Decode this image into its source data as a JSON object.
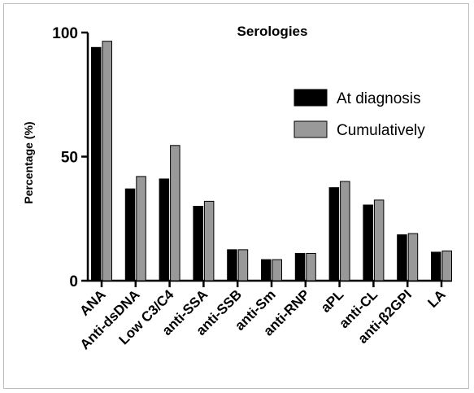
{
  "chart_data": {
    "type": "bar",
    "title": "Serologies",
    "xlabel": "",
    "ylabel": "Percentage (%)",
    "ylim": [
      0,
      100
    ],
    "yticks": [
      0,
      50,
      100
    ],
    "categories": [
      "ANA",
      "Anti-dsDNA",
      "Low C3/C4",
      "anti-SSA",
      "anti-SSB",
      "anti-Sm",
      "anti-RNP",
      "aPL",
      "anti-CL",
      "anti-β2GPI",
      "LA"
    ],
    "series": [
      {
        "name": "At diagnosis",
        "color": "#000000",
        "values": [
          94,
          37,
          41,
          30,
          12.5,
          8.5,
          11,
          37.5,
          30.5,
          18.5,
          11.5
        ]
      },
      {
        "name": "Cumulatively",
        "color": "#999999",
        "values": [
          96.5,
          42,
          54.5,
          32,
          12.5,
          8.5,
          11,
          40,
          32.5,
          19,
          12
        ]
      }
    ],
    "legend_position": "top-right",
    "grid": false
  }
}
